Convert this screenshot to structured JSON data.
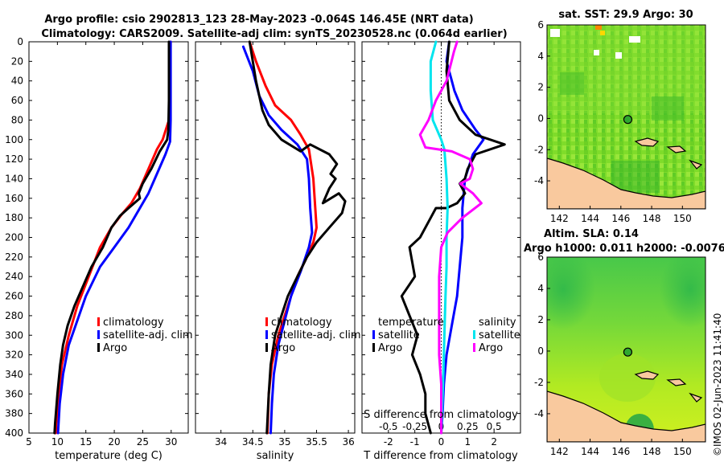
{
  "titles": {
    "line1": "Argo profile: csio 2902813_123 28-May-2023 -0.064S 146.45E (NRT data)",
    "line2": "Climatology: CARS2009. Satellite-adj clim: synTS_20230528.nc (0.064d earlier)"
  },
  "colors": {
    "climatology": "#ff0000",
    "satellite": "#0000ff",
    "argo": "#000000",
    "salinity_sat": "#00e5ee",
    "salinity_argo": "#ff00ff",
    "land": "#f9c99e"
  },
  "chart_data": [
    {
      "type": "line",
      "name": "temperature-profile",
      "xlabel": "temperature (deg C)",
      "ylabel": "",
      "xlim": [
        5,
        33
      ],
      "ylim": [
        0,
        400
      ],
      "y_reversed": true,
      "xticks": [
        5,
        10,
        15,
        20,
        25,
        30
      ],
      "yticks": [
        0,
        20,
        40,
        60,
        80,
        100,
        120,
        140,
        160,
        180,
        200,
        220,
        240,
        260,
        280,
        300,
        320,
        340,
        360,
        380,
        400
      ],
      "legend": {
        "placement": "lower-right",
        "entries": [
          "climatology",
          "satellite-adj. clim",
          "Argo"
        ]
      },
      "series": [
        {
          "name": "climatology",
          "color": "#ff0000",
          "points": [
            [
              29.9,
              0
            ],
            [
              29.8,
              40
            ],
            [
              29.7,
              60
            ],
            [
              29.6,
              80
            ],
            [
              28.5,
              100
            ],
            [
              27.5,
              110
            ],
            [
              26,
              130
            ],
            [
              24.5,
              150
            ],
            [
              23,
              165
            ],
            [
              21.5,
              175
            ],
            [
              19.5,
              190
            ],
            [
              17.5,
              210
            ],
            [
              15.5,
              240
            ],
            [
              13.5,
              270
            ],
            [
              12,
              300
            ],
            [
              10.8,
              330
            ],
            [
              10.2,
              360
            ],
            [
              9.8,
              390
            ],
            [
              9.7,
              400
            ]
          ]
        },
        {
          "name": "satellite-adj. clim",
          "color": "#0000ff",
          "points": [
            [
              29.9,
              0
            ],
            [
              29.9,
              60
            ],
            [
              29.9,
              80
            ],
            [
              29.8,
              102
            ],
            [
              29,
              115
            ],
            [
              27.5,
              135
            ],
            [
              26,
              155
            ],
            [
              24.5,
              170
            ],
            [
              22.5,
              190
            ],
            [
              20,
              210
            ],
            [
              17.5,
              230
            ],
            [
              15,
              260
            ],
            [
              13.5,
              285
            ],
            [
              12,
              310
            ],
            [
              11,
              340
            ],
            [
              10.4,
              370
            ],
            [
              10.1,
              400
            ]
          ]
        },
        {
          "name": "Argo",
          "color": "#000000",
          "points": [
            [
              29.6,
              0
            ],
            [
              29.6,
              60
            ],
            [
              29.5,
              90
            ],
            [
              29.3,
              100
            ],
            [
              28,
              112
            ],
            [
              26.5,
              130
            ],
            [
              25,
              145
            ],
            [
              24.3,
              155
            ],
            [
              24.5,
              160
            ],
            [
              22.5,
              170
            ],
            [
              21,
              178
            ],
            [
              19.5,
              190
            ],
            [
              18,
              210
            ],
            [
              16,
              230
            ],
            [
              14.5,
              250
            ],
            [
              13,
              270
            ],
            [
              11.8,
              290
            ],
            [
              11,
              310
            ],
            [
              10.5,
              330
            ],
            [
              10,
              360
            ],
            [
              9.6,
              390
            ],
            [
              9.5,
              400
            ]
          ]
        }
      ]
    },
    {
      "type": "line",
      "name": "salinity-profile",
      "xlabel": "salinity",
      "ylabel": "",
      "xlim": [
        33.6,
        36.1
      ],
      "ylim": [
        0,
        400
      ],
      "y_reversed": true,
      "xticks": [
        34,
        34.5,
        35,
        35.5,
        36
      ],
      "xticklabels": [
        "34",
        "34.5",
        "35",
        "35.5",
        "36"
      ],
      "legend": {
        "placement": "lower-right",
        "entries": [
          "climatology",
          "satellite-adj. clim",
          "Argo"
        ]
      },
      "series": [
        {
          "name": "climatology",
          "color": "#ff0000",
          "points": [
            [
              34.45,
              0
            ],
            [
              34.55,
              20
            ],
            [
              34.7,
              45
            ],
            [
              34.85,
              65
            ],
            [
              35.1,
              80
            ],
            [
              35.25,
              95
            ],
            [
              35.38,
              110
            ],
            [
              35.45,
              140
            ],
            [
              35.48,
              170
            ],
            [
              35.5,
              190
            ],
            [
              35.45,
              205
            ],
            [
              35.35,
              220
            ],
            [
              35.2,
              240
            ],
            [
              35.1,
              260
            ],
            [
              35,
              280
            ],
            [
              34.9,
              300
            ],
            [
              34.8,
              330
            ],
            [
              34.75,
              360
            ],
            [
              34.73,
              400
            ]
          ]
        },
        {
          "name": "satellite-adj. clim",
          "color": "#0000ff",
          "points": [
            [
              34.35,
              5
            ],
            [
              34.5,
              30
            ],
            [
              34.6,
              55
            ],
            [
              34.75,
              75
            ],
            [
              34.95,
              90
            ],
            [
              35.2,
              105
            ],
            [
              35.35,
              120
            ],
            [
              35.38,
              140
            ],
            [
              35.4,
              170
            ],
            [
              35.43,
              195
            ],
            [
              35.38,
              210
            ],
            [
              35.25,
              235
            ],
            [
              35.1,
              260
            ],
            [
              35,
              285
            ],
            [
              34.9,
              310
            ],
            [
              34.83,
              340
            ],
            [
              34.8,
              370
            ],
            [
              34.78,
              400
            ]
          ]
        },
        {
          "name": "Argo",
          "color": "#000000",
          "points": [
            [
              34.45,
              0
            ],
            [
              34.55,
              40
            ],
            [
              34.65,
              70
            ],
            [
              34.75,
              85
            ],
            [
              34.95,
              100
            ],
            [
              35.25,
              112
            ],
            [
              35.4,
              105
            ],
            [
              35.7,
              115
            ],
            [
              35.82,
              125
            ],
            [
              35.72,
              135
            ],
            [
              35.8,
              140
            ],
            [
              35.7,
              150
            ],
            [
              35.6,
              165
            ],
            [
              35.85,
              155
            ],
            [
              35.95,
              163
            ],
            [
              35.9,
              175
            ],
            [
              35.7,
              190
            ],
            [
              35.5,
              205
            ],
            [
              35.35,
              220
            ],
            [
              35.2,
              240
            ],
            [
              35.05,
              260
            ],
            [
              34.95,
              280
            ],
            [
              34.85,
              300
            ],
            [
              34.78,
              330
            ],
            [
              34.75,
              360
            ],
            [
              34.72,
              400
            ]
          ]
        }
      ]
    },
    {
      "type": "line",
      "name": "difference-profile",
      "xlabel": "T difference from climatology",
      "x2label": "S difference from climatology",
      "xlim": [
        -3,
        3
      ],
      "ylim": [
        0,
        400
      ],
      "y_reversed": true,
      "xticks": [
        -2,
        -1,
        0,
        1,
        2
      ],
      "x2lim": [
        -0.75,
        0.75
      ],
      "x2ticks": [
        -0.5,
        -0.25,
        0,
        0.25,
        0.5
      ],
      "x2ticklabels": [
        "-0.5",
        "-0.25",
        "0",
        "0.25",
        "0.5"
      ],
      "legend": {
        "placement": "lower-center",
        "headers": [
          "temperature",
          "salinity"
        ],
        "entries": [
          "satellite",
          "Argo",
          "satellite",
          "Argo"
        ]
      },
      "series": [
        {
          "name": "temperature satellite",
          "color": "#0000ff",
          "axis": "T",
          "points": [
            [
              0.3,
              0
            ],
            [
              0.2,
              20
            ],
            [
              0.5,
              50
            ],
            [
              0.8,
              70
            ],
            [
              1.3,
              90
            ],
            [
              1.6,
              100
            ],
            [
              1.2,
              115
            ],
            [
              0.9,
              140
            ],
            [
              0.8,
              170
            ],
            [
              0.8,
              200
            ],
            [
              0.7,
              230
            ],
            [
              0.6,
              260
            ],
            [
              0.4,
              290
            ],
            [
              0.2,
              320
            ],
            [
              0.1,
              350
            ],
            [
              0.05,
              380
            ],
            [
              0,
              400
            ]
          ]
        },
        {
          "name": "temperature Argo",
          "color": "#000000",
          "axis": "T",
          "points": [
            [
              0.3,
              0
            ],
            [
              0.2,
              30
            ],
            [
              0.3,
              60
            ],
            [
              0.7,
              80
            ],
            [
              1.3,
              95
            ],
            [
              2.4,
              105
            ],
            [
              1.3,
              115
            ],
            [
              1.0,
              130
            ],
            [
              0.9,
              140
            ],
            [
              0.7,
              145
            ],
            [
              0.9,
              155
            ],
            [
              0.6,
              165
            ],
            [
              0.2,
              170
            ],
            [
              -0.2,
              170
            ],
            [
              -0.4,
              180
            ],
            [
              -0.8,
              200
            ],
            [
              -1.2,
              210
            ],
            [
              -1.0,
              240
            ],
            [
              -1.5,
              260
            ],
            [
              -1.2,
              280
            ],
            [
              -0.9,
              300
            ],
            [
              -1.1,
              320
            ],
            [
              -0.8,
              340
            ],
            [
              -0.6,
              360
            ],
            [
              -0.6,
              380
            ],
            [
              -0.4,
              400
            ]
          ]
        },
        {
          "name": "salinity satellite",
          "color": "#00e5ee",
          "axis": "S",
          "points": [
            [
              -0.05,
              0
            ],
            [
              -0.1,
              20
            ],
            [
              -0.1,
              50
            ],
            [
              -0.08,
              80
            ],
            [
              0,
              100
            ],
            [
              0.03,
              110
            ],
            [
              0.05,
              140
            ],
            [
              0.06,
              170
            ],
            [
              0.05,
              200
            ],
            [
              0.05,
              230
            ],
            [
              0.04,
              260
            ],
            [
              0.03,
              300
            ],
            [
              0.02,
              340
            ],
            [
              0.01,
              370
            ],
            [
              0,
              400
            ]
          ]
        },
        {
          "name": "salinity Argo",
          "color": "#ff00ff",
          "axis": "S",
          "points": [
            [
              0.15,
              0
            ],
            [
              0.12,
              10
            ],
            [
              0.05,
              40
            ],
            [
              -0.05,
              60
            ],
            [
              -0.12,
              80
            ],
            [
              -0.2,
              95
            ],
            [
              -0.15,
              108
            ],
            [
              0.1,
              112
            ],
            [
              0.27,
              120
            ],
            [
              0.3,
              130
            ],
            [
              0.27,
              140
            ],
            [
              0.18,
              145
            ],
            [
              0.3,
              155
            ],
            [
              0.38,
              165
            ],
            [
              0.2,
              180
            ],
            [
              0.06,
              195
            ],
            [
              0,
              210
            ],
            [
              -0.02,
              240
            ],
            [
              -0.02,
              280
            ],
            [
              -0.02,
              320
            ],
            [
              0,
              350
            ],
            [
              0,
              400
            ]
          ]
        }
      ]
    },
    {
      "type": "heatmap",
      "name": "sst-map",
      "title": "sat. SST: 29.9 Argo: 30",
      "xlim": [
        141.2,
        151.5
      ],
      "ylim": [
        -5.8,
        6
      ],
      "xticks": [
        142,
        144,
        146,
        148,
        150
      ],
      "yticks": [
        -4,
        -2,
        0,
        2,
        4,
        6
      ],
      "argo_location": [
        146.45,
        -0.064
      ]
    },
    {
      "type": "heatmap",
      "name": "sla-map",
      "title": "Altim. SLA: 0.14",
      "subtitle": "Argo h1000: 0.011 h2000: -0.0076",
      "xlim": [
        141.2,
        151.5
      ],
      "ylim": [
        -5.8,
        6
      ],
      "xticks": [
        142,
        144,
        146,
        148,
        150
      ],
      "yticks": [
        -4,
        -2,
        0,
        2,
        4,
        6
      ],
      "argo_location": [
        146.45,
        -0.064
      ]
    }
  ],
  "footer_stamp": "©IMOS 02-Jun-2023 11:41:40"
}
